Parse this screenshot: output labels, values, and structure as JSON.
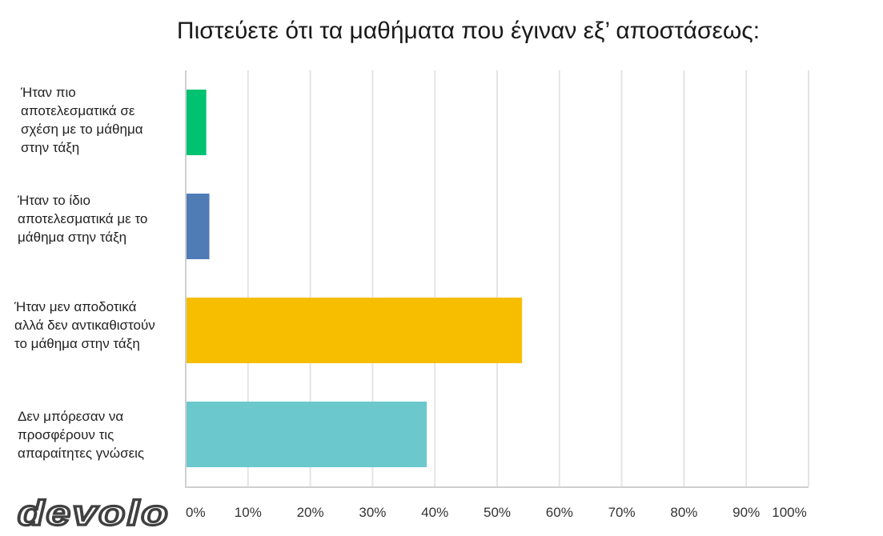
{
  "chart_data": {
    "type": "bar",
    "orientation": "horizontal",
    "title": "Πιστεύετε ότι τα μαθήματα που έγιναν εξ’ αποστάσεως:",
    "categories": [
      "Ήταν πιο αποτελεσματικά σε σχέση με το μάθημα στην τάξη",
      "Ήταν το ίδιο αποτελεσματικά με το μάθημα στην τάξη",
      "Ήταν μεν αποδοτικά αλλά δεν αντικαθιστούν το μάθημα στην τάξη",
      "Δεν μπόρεσαν να προσφέρουν τις απαραίτητες γνώσεις"
    ],
    "category_label_lines": [
      [
        "Ήταν πιο",
        "αποτελεσματικά σε",
        "σχέση με το μάθημα",
        "στην τάξη"
      ],
      [
        "Ήταν το ίδιο",
        "αποτελεσματικά με το",
        "μάθημα στην τάξη"
      ],
      [
        "Ήταν μεν αποδοτικά",
        "αλλά δεν αντικαθιστούν",
        "το μάθημα στην τάξη"
      ],
      [
        "Δεν μπόρεσαν να",
        "προσφέρουν τις",
        "απαραίτητες γνώσεις"
      ]
    ],
    "values": [
      3.3,
      3.8,
      54,
      38.7
    ],
    "colors": [
      "#00c271",
      "#507cb6",
      "#f7be00",
      "#6bc8cd"
    ],
    "xlim": [
      0,
      100
    ],
    "x_ticks": [
      "0%",
      "10%",
      "20%",
      "30%",
      "40%",
      "50%",
      "60%",
      "70%",
      "80%",
      "90%",
      "100%"
    ],
    "grid": true,
    "gridline_color": "#e4e4e4"
  },
  "brand": {
    "logo_text": "devolo"
  }
}
